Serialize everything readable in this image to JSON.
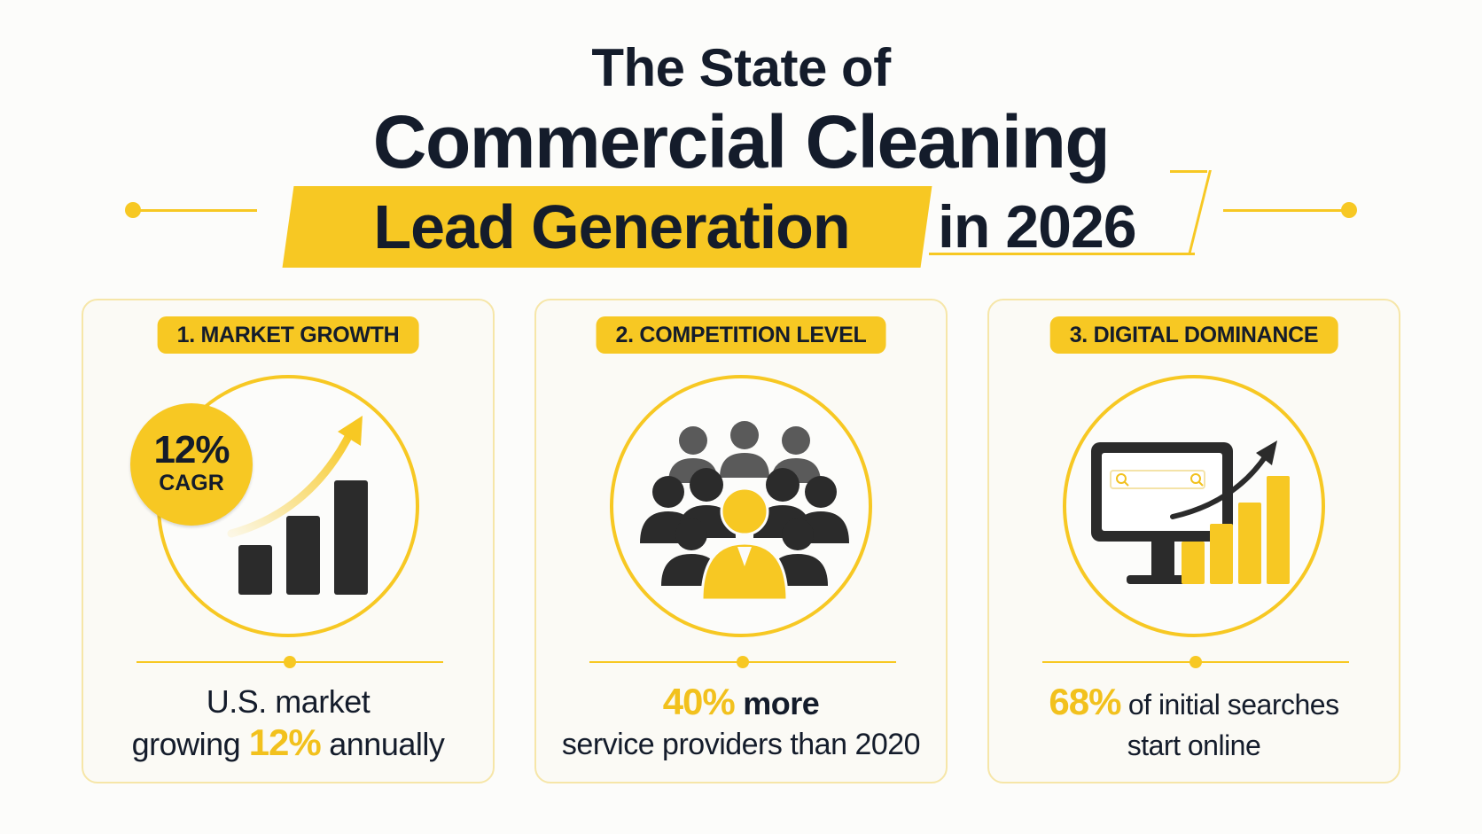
{
  "header": {
    "line1": "The State of",
    "line2": "Commercial Cleaning",
    "highlight": "Lead Generation",
    "line3_tail": "in 2026"
  },
  "colors": {
    "accent": "#f7c823",
    "text": "#141c2b",
    "dark_bar": "#2b2b2b",
    "people_gray": "#5a5a5a"
  },
  "cards": [
    {
      "label": "1. MARKET GROWTH",
      "badge_value": "12%",
      "badge_sub": "CAGR",
      "icon": "bar-chart-growth-icon",
      "desc_line1": "U.S. market",
      "desc_pre": "growing ",
      "desc_highlight": "12%",
      "desc_post": " annually"
    },
    {
      "label": "2. COMPETITION LEVEL",
      "icon": "crowd-people-icon",
      "desc_highlight": "40%",
      "desc_bold": " more",
      "desc_line2": "service providers than 2020"
    },
    {
      "label": "3. DIGITAL DOMINANCE",
      "icon": "monitor-search-chart-icon",
      "desc_highlight": "68%",
      "desc_rest": " of initial searches",
      "desc_line2": "start online"
    }
  ]
}
